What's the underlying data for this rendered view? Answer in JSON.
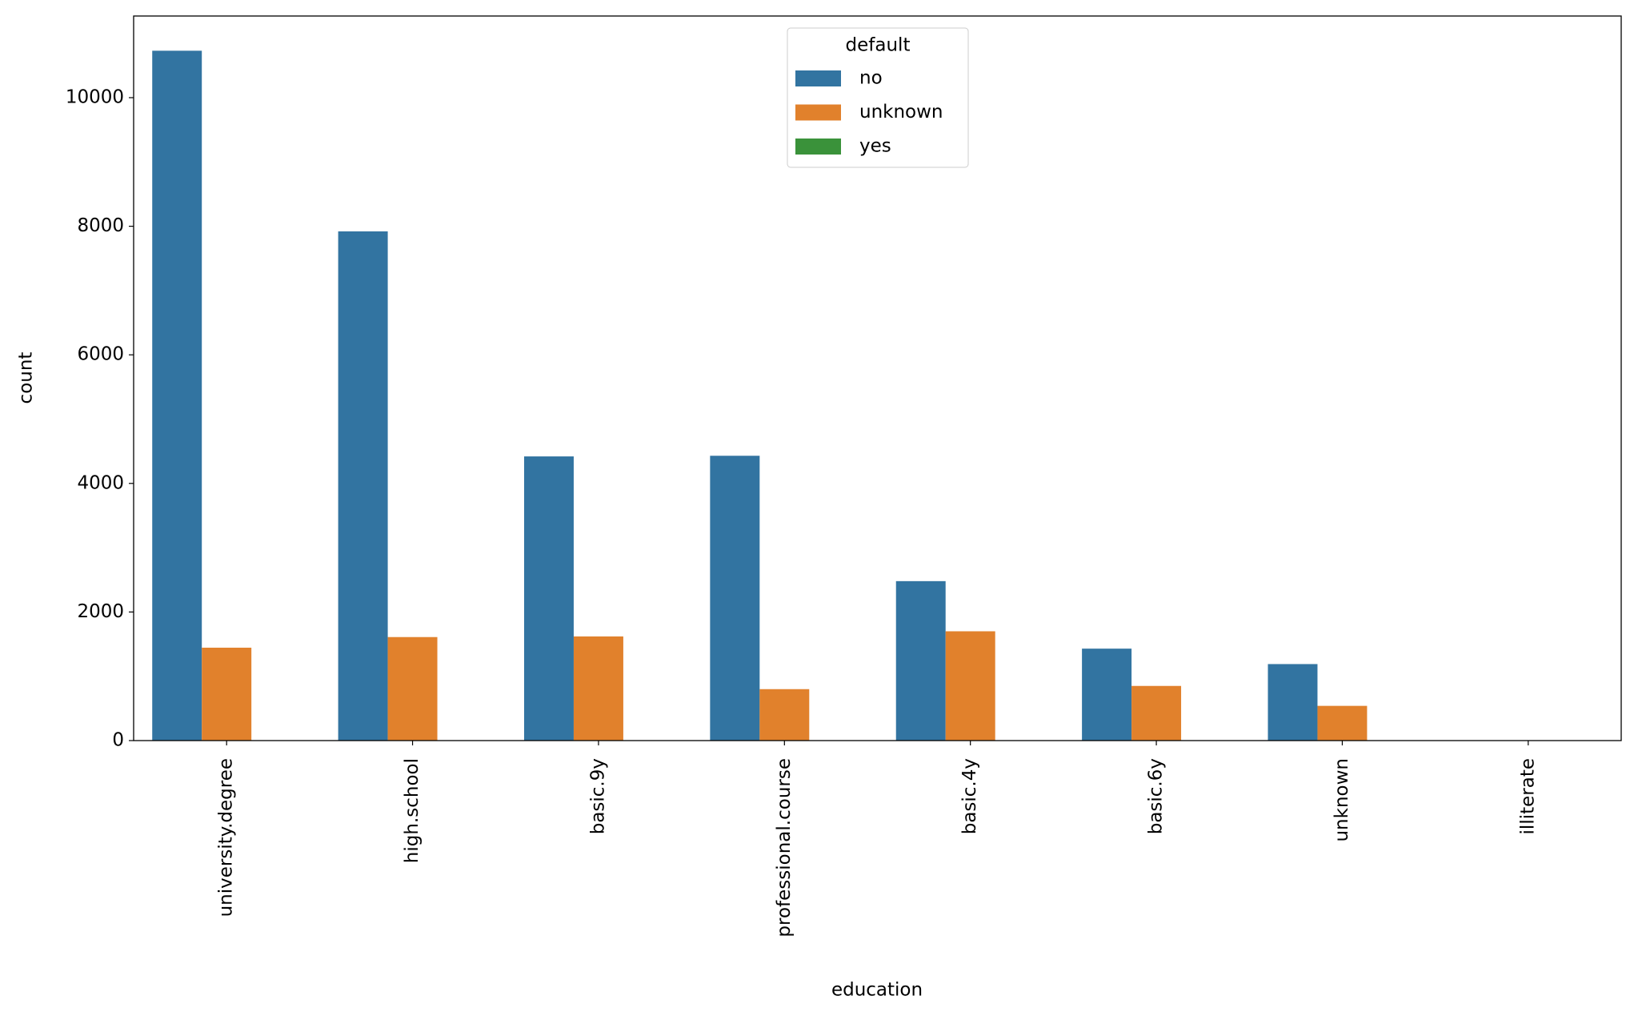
{
  "chart_data": {
    "type": "bar",
    "x_label": "education",
    "y_label": "count",
    "categories": [
      "university.degree",
      "high.school",
      "basic.9y",
      "professional.course",
      "basic.4y",
      "basic.6y",
      "unknown",
      "illiterate"
    ],
    "legend_title": "default",
    "legend_position": "upper center",
    "series": [
      {
        "name": "no",
        "color": "#3274a1",
        "values": [
          10730,
          7920,
          4420,
          4430,
          2480,
          1430,
          1190,
          0
        ]
      },
      {
        "name": "unknown",
        "color": "#e1812c",
        "values": [
          1445,
          1610,
          1620,
          800,
          1700,
          850,
          540,
          0
        ]
      },
      {
        "name": "yes",
        "color": "#3a923a",
        "values": [
          0,
          0,
          0,
          0,
          0,
          0,
          0,
          0
        ]
      }
    ],
    "ylim": [
      0,
      11270
    ],
    "yticks": [
      0,
      2000,
      4000,
      6000,
      8000,
      10000
    ],
    "grid": false
  }
}
